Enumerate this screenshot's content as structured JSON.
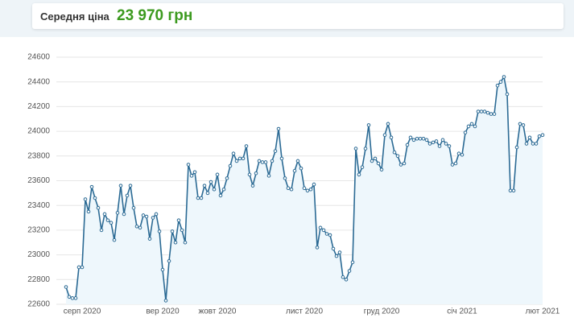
{
  "header": {
    "label": "Середня ціна",
    "price": "23 970 грн"
  },
  "chart_data": {
    "type": "line",
    "categories": [
      null,
      null,
      null,
      null,
      null,
      "серп 2020",
      null,
      null,
      null,
      null,
      null,
      null,
      null,
      null,
      null,
      null,
      null,
      null,
      null,
      null,
      null,
      null,
      null,
      null,
      null,
      null,
      null,
      null,
      null,
      null,
      "вер 2020",
      null,
      null,
      null,
      null,
      null,
      null,
      null,
      null,
      null,
      null,
      null,
      null,
      null,
      null,
      null,
      null,
      "жовт 2020",
      null,
      null,
      null,
      null,
      null,
      null,
      null,
      null,
      null,
      null,
      null,
      null,
      null,
      null,
      null,
      null,
      null,
      null,
      null,
      null,
      null,
      null,
      null,
      null,
      null,
      null,
      "лист 2020",
      null,
      null,
      null,
      null,
      null,
      null,
      null,
      null,
      null,
      null,
      null,
      null,
      null,
      null,
      null,
      null,
      null,
      null,
      null,
      null,
      null,
      null,
      null,
      "груд 2020",
      null,
      null,
      null,
      null,
      null,
      null,
      null,
      null,
      null,
      null,
      null,
      null,
      null,
      null,
      null,
      null,
      null,
      null,
      null,
      null,
      null,
      null,
      null,
      null,
      "січ 2021",
      null,
      null,
      null,
      null,
      null,
      null,
      null,
      null,
      null,
      null,
      null,
      null,
      null,
      null,
      null,
      null,
      null,
      null,
      null,
      null,
      null,
      null,
      null,
      null,
      "лют 2021"
    ],
    "series": [
      {
        "color": "#2b6a94",
        "values": [
          22740,
          22660,
          22650,
          22650,
          22900,
          22900,
          23450,
          23350,
          23550,
          23460,
          23380,
          23200,
          23330,
          23280,
          23260,
          23120,
          23340,
          23560,
          23330,
          23480,
          23560,
          23380,
          23230,
          23220,
          23320,
          23310,
          23130,
          23300,
          23330,
          23190,
          22880,
          22630,
          22950,
          23190,
          23100,
          23280,
          23200,
          23100,
          23730,
          23640,
          23670,
          23460,
          23460,
          23560,
          23500,
          23590,
          23530,
          23650,
          23480,
          23530,
          23620,
          23720,
          23820,
          23760,
          23780,
          23780,
          23880,
          23650,
          23560,
          23660,
          23760,
          23750,
          23750,
          23640,
          23760,
          23840,
          24020,
          23780,
          23620,
          23540,
          23530,
          23680,
          23760,
          23700,
          23540,
          23520,
          23530,
          23570,
          23060,
          23220,
          23200,
          23170,
          23160,
          23050,
          22990,
          23020,
          22820,
          22800,
          22870,
          22940,
          23860,
          23650,
          23710,
          23860,
          24050,
          23760,
          23780,
          23740,
          23690,
          23970,
          24060,
          23950,
          23830,
          23800,
          23730,
          23740,
          23890,
          23950,
          23930,
          23940,
          23940,
          23940,
          23930,
          23900,
          23910,
          23920,
          23880,
          23930,
          23900,
          23880,
          23730,
          23740,
          23820,
          23810,
          23990,
          24040,
          24060,
          24040,
          24160,
          24160,
          24160,
          24150,
          24140,
          24140,
          24370,
          24400,
          24440,
          24300,
          23520,
          23520,
          23870,
          24060,
          24050,
          23900,
          23950,
          23900,
          23900,
          23960,
          23970
        ]
      }
    ],
    "ylim": [
      22600,
      24600
    ],
    "yticks": [
      22600,
      22800,
      23000,
      23200,
      23400,
      23600,
      23800,
      24000,
      24200,
      24400,
      24600
    ],
    "grid": true
  }
}
